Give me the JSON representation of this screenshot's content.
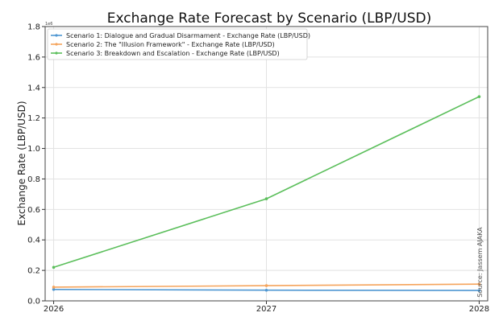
{
  "chart_data": {
    "type": "line",
    "title": "Exchange Rate Forecast by Scenario (LBP/USD)",
    "xlabel": "",
    "ylabel": "Exchange Rate (LBP/USD)",
    "x": [
      2026,
      2027,
      2028
    ],
    "x_tick_labels": [
      "2026",
      "2027",
      "2028"
    ],
    "y_ticks": [
      0.0,
      0.2,
      0.4,
      0.6,
      0.8,
      1.0,
      1.2,
      1.4,
      1.6,
      1.8
    ],
    "y_tick_labels": [
      "0.0",
      "0.2",
      "0.4",
      "0.6",
      "0.8",
      "1.0",
      "1.2",
      "1.4",
      "1.6",
      "1.8"
    ],
    "ylim": [
      0,
      1.8
    ],
    "y_offset_text": "1e6",
    "grid": true,
    "legend_position": "top-left",
    "source_note": "Source: Jassem AJAKA",
    "series": [
      {
        "name": "Scenario 1: Dialogue and Gradual Disarmament - Exchange Rate (LBP/USD)",
        "color": "#4f97d2",
        "values": [
          0.075,
          0.07,
          0.068
        ]
      },
      {
        "name": "Scenario 2: The \"Illusion Framework\" - Exchange Rate (LBP/USD)",
        "color": "#f5a45c",
        "values": [
          0.09,
          0.1,
          0.11
        ]
      },
      {
        "name": "Scenario 3: Breakdown and Escalation - Exchange Rate (LBP/USD)",
        "color": "#5cbf5c",
        "values": [
          0.22,
          0.67,
          1.34
        ]
      }
    ]
  }
}
